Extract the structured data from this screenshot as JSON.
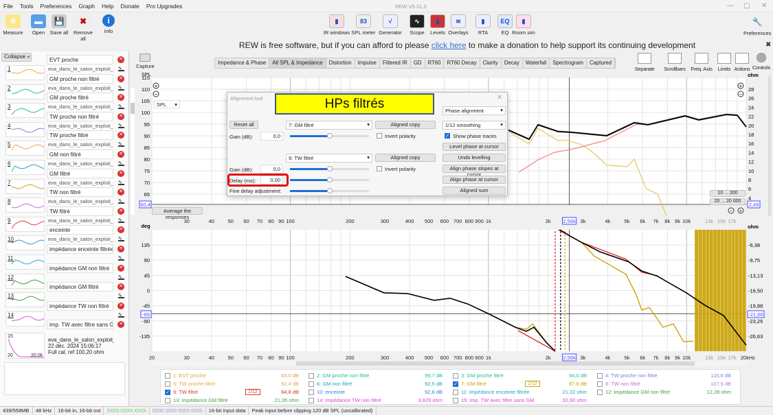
{
  "menu": [
    "File",
    "Tools",
    "Preferences",
    "Graph",
    "Help",
    "Donate",
    "Pro Upgrades"
  ],
  "window_title": "REW V5.31.3",
  "toolbar_left": [
    {
      "label": "Measure",
      "icon": "measure-icon"
    },
    {
      "label": "Open",
      "icon": "folder-icon"
    },
    {
      "label": "Save all",
      "icon": "save-icon"
    },
    {
      "label": "Remove all",
      "icon": "remove-icon"
    },
    {
      "label": "Info",
      "icon": "info-icon"
    }
  ],
  "toolbar_right": [
    {
      "label": "IR windows",
      "icon": "ir-windows-icon"
    },
    {
      "label": "SPL meter",
      "icon": "spl-meter-icon",
      "glyph": "83"
    },
    {
      "label": "Generator",
      "icon": "generator-icon"
    },
    {
      "label": "Scope",
      "icon": "scope-icon"
    },
    {
      "label": "Levels",
      "icon": "levels-icon"
    },
    {
      "label": "Overlays",
      "icon": "overlays-icon"
    },
    {
      "label": "RTA",
      "icon": "rta-icon"
    },
    {
      "label": "EQ",
      "icon": "eq-icon",
      "glyph": "EQ"
    },
    {
      "label": "Room sim",
      "icon": "room-sim-icon"
    }
  ],
  "preferences_label": "Preferences",
  "donate": {
    "before": "REW is free software, but if you can afford to please ",
    "link": "click here",
    "after": " to make a donation to help support its continuing development"
  },
  "collapse_label": "Collapse",
  "capture_label": "Capture",
  "tabs": [
    {
      "label": "Impedance & Phase"
    },
    {
      "label": "All SPL & Impedance",
      "active": true
    },
    {
      "label": "Distortion"
    },
    {
      "label": "Impulse"
    },
    {
      "label": "Filtered IR"
    },
    {
      "label": "GD"
    },
    {
      "label": "RT60"
    },
    {
      "label": "RT60 Decay"
    },
    {
      "label": "Clarity"
    },
    {
      "label": "Decay"
    },
    {
      "label": "Waterfall"
    },
    {
      "label": "Spectrogram"
    },
    {
      "label": "Captured"
    }
  ],
  "graph_tools": [
    "Separate",
    "Scrollbars",
    "Freq. Axis",
    "Limits",
    "Actions",
    "Controls"
  ],
  "measurements": [
    {
      "n": "1",
      "name": "EVT proche",
      "sub": "eva_dans_le_salon_exploit_ir_d",
      "color": "#e0b030"
    },
    {
      "n": "2",
      "name": "GM proche non filtré",
      "sub": "eva_dans_le_salon_exploit_ir_d",
      "color": "#20c090"
    },
    {
      "n": "3",
      "name": "GM proche filtré",
      "sub": "eva_dans_le_salon_exploit_ir_d",
      "color": "#20c090"
    },
    {
      "n": "4",
      "name": "TW proche non filtré",
      "sub": "eva_dans_le_salon_exploit_ir_d",
      "color": "#8080e0"
    },
    {
      "n": "5",
      "name": "TW proche filtré",
      "sub": "eva_dans_le_salon_exploit_ir_d",
      "color": "#f0a040"
    },
    {
      "n": "6",
      "name": "GM non filtré",
      "sub": "eva_dans_le_salon_exploit_ir_d",
      "color": "#20a0c0"
    },
    {
      "n": "7",
      "name": "GM filtré",
      "sub": "eva_dans_le_salon_exploit_ir_d",
      "color": "#d0a020"
    },
    {
      "n": "8",
      "name": "TW non filtré",
      "sub": "eva_dans_le_salon_exploit_ir_d",
      "color": "#c070e0"
    },
    {
      "n": "9",
      "name": "TW filtré",
      "sub": "eva_dans_le_salon_exploit_ir_d",
      "color": "#e04040"
    },
    {
      "n": "10",
      "name": "enceinte",
      "sub": "eva_dans_le_salon_exploit_ir_d",
      "color": "#3090e0"
    },
    {
      "n": "11",
      "name": "impédance enceinte filtrée",
      "sub": "",
      "color": "#20a0d0"
    },
    {
      "n": "12",
      "name": "impédance GM non filtré",
      "sub": "",
      "color": "#40a040"
    },
    {
      "n": "13",
      "name": "impédance GM filtré",
      "sub": "",
      "color": "#40a040"
    },
    {
      "n": "14",
      "name": "impédance TW non filtré",
      "sub": "",
      "color": "#e050e0"
    },
    {
      "n": "15",
      "name": "imp. TW avec filtre sans GM",
      "sub": "",
      "color": "#e050e0"
    }
  ],
  "selected_measurement": {
    "file": "eva_dans_le_salon_exploit_ir_d",
    "date": "22 déc. 2024 15:06:17",
    "cal": "Full cal, ref 100,20 ohm",
    "thumb_min": "20",
    "thumb_max": "20,0k"
  },
  "graph": {
    "spl_unit": "SPL",
    "spl_select": "SPL",
    "ohm_unit": "ohm",
    "deg_unit": "deg",
    "spl_ticks": [
      "115",
      "110",
      "105",
      "100",
      "95",
      "90",
      "85",
      "80",
      "75",
      "70",
      "65"
    ],
    "spl_cursor": "60,4",
    "ohm_ticks": [
      "28",
      "26",
      "24",
      "22",
      "20",
      "18",
      "16",
      "14",
      "12",
      "10",
      "8",
      "6",
      "4"
    ],
    "ohm_cursor": "2,49",
    "deg_ticks": [
      "135",
      "90",
      "45",
      "0",
      "-45",
      "-90",
      "-135"
    ],
    "deg_cursor": "-69",
    "phase_ohm_ticks": [
      "-6,38",
      "-9,75",
      "-13,13",
      "-16,50",
      "-19,88",
      "-23,25",
      "-26,63"
    ],
    "phase_ohm_cursor": "-21,66",
    "freq_ticks_top": [
      "30",
      "40",
      "50",
      "60",
      "70",
      "80",
      "90",
      "100",
      "200",
      "300",
      "400",
      "500",
      "600",
      "700",
      "800",
      "900",
      "1k",
      "2k",
      "3k",
      "4k",
      "5k",
      "6k",
      "7k",
      "8k",
      "9k",
      "10k",
      "13k",
      "15k",
      "17k"
    ],
    "freq_ticks_bottom": [
      "20",
      "30",
      "40",
      "50",
      "60",
      "70",
      "80",
      "90",
      "100",
      "200",
      "300",
      "400",
      "500",
      "600",
      "700",
      "800",
      "900",
      "1k",
      "2k",
      "3k",
      "4k",
      "5k",
      "6k",
      "7k",
      "8k",
      "9k",
      "10k",
      "13k",
      "15k",
      "17k",
      "20kHz"
    ],
    "freq_cursor": "2,56k",
    "range_btn_1": "10 ... 200",
    "range_btn_2": "20 ... 20 000",
    "average_btn": "Average the responses"
  },
  "chart_data": [
    {
      "type": "line",
      "scale_x": "log",
      "xlim": [
        20,
        20000
      ],
      "ylim": [
        60.4,
        115
      ],
      "ylabel": "SPL",
      "cursor": {
        "x": 2560,
        "y": 60.4
      },
      "series": [
        {
          "name": "sum",
          "color": "#000000",
          "x": [
            1262,
            1604,
            1779,
            2244,
            2589,
            3955,
            5446,
            6385,
            9822,
            11530,
            15850,
            18030,
            20000
          ],
          "y": [
            92.4,
            88.5,
            94.7,
            91.8,
            91.5,
            90.0,
            95.6,
            94.7,
            98.5,
            96.8,
            99.1,
            98.8,
            93.8
          ]
        },
        {
          "name": "7: GM filtré",
          "color": "#e8c560",
          "x": [
            1262,
            1604,
            1779,
            2244,
            2450,
            2966,
            3366,
            3955,
            5024,
            5446,
            6238,
            7147,
            7925
          ],
          "y": [
            91.8,
            86.5,
            93.2,
            87.9,
            88.2,
            86.2,
            82.9,
            77.4,
            76.8,
            80.0,
            67.4,
            65.0,
            55.6
          ]
        },
        {
          "name": "9: TW filtré",
          "color": "#f08080",
          "x": [
            1422,
            1779,
            2155,
            2589,
            3034,
            3864,
            5024,
            5624,
            6385
          ],
          "y": [
            74.4,
            79.7,
            82.9,
            84.1,
            85.6,
            87.9,
            92.9,
            95.0,
            94.7
          ]
        }
      ]
    },
    {
      "type": "line",
      "scale_x": "log",
      "xlim": [
        20,
        20000
      ],
      "ylim": [
        -180,
        180
      ],
      "ylabel": "deg",
      "cursor": {
        "x": 2560,
        "y": -69
      },
      "markers": [
        {
          "x": 2172,
          "color": "#e02020"
        },
        {
          "x": 2313,
          "color": "#000000"
        },
        {
          "x": 2431,
          "color": "#d0a000"
        }
      ],
      "series": [
        {
          "name": "7: GM filtré",
          "color": "#c9a000",
          "x": [
            190,
            297,
            390,
            532,
            640,
            787,
            1009,
            1368,
            1552,
            1672,
            1973,
            2172,
            null,
            2296,
            2608,
            2944,
            3420,
            4944,
            5572,
            5943,
            6486,
            7606,
            8574,
            9664,
            10810
          ],
          "y": [
            41.7,
            -7,
            -9,
            -29,
            -23,
            -40,
            -70,
            -109,
            -115,
            -99,
            -156,
            -180,
            null,
            180,
            160,
            143,
            102,
            48,
            -13,
            -58,
            -50,
            -109,
            -99,
            -152,
            -150
          ],
          "noise_band_hz": [
            11000,
            20000
          ]
        },
        {
          "name": "sum",
          "color": "#000000",
          "x": [
            190,
            297,
            390,
            532,
            640,
            787,
            1009,
            1368,
            1552,
            1696,
            1973,
            2172,
            null,
            2296,
            2608,
            2944,
            3648,
            5106,
            5943,
            7145,
            9982,
            12390,
            15350,
            20000
          ],
          "y": [
            41.7,
            -7,
            -9,
            -29,
            -23,
            -40,
            -70,
            -109,
            -121,
            -109,
            -156,
            -180,
            null,
            180,
            160,
            143,
            115,
            85,
            58,
            42,
            -7,
            -44,
            -74,
            -162
          ]
        },
        {
          "name": "9: TW filtré",
          "color": "#e02020",
          "x": [
            1413,
            2172,
            null,
            2250,
            2944,
            4944,
            5943,
            7145
          ],
          "y": [
            -119,
            -180,
            null,
            180,
            143,
            93,
            54,
            44
          ]
        }
      ]
    }
  ],
  "alignment_tool": {
    "title": "Alignment tool",
    "banner": "HPs filtrés",
    "reset": "Reset all",
    "sel1": "7: GM filtré",
    "sel2": "9: TW filtré",
    "aligned_copy": "Aligned copy",
    "gain_label": "Gain (dB):",
    "gain1": "0,0",
    "gain2": "0,0",
    "invert": "Invert polarity",
    "delay_label": "Delay (ms):",
    "delay": "0,00",
    "fine": "Fine delay adjustment:",
    "mode": "Phase alignment",
    "smoothing": "1/12 smoothing",
    "show_phase": "Show phase traces",
    "btn_level": "Level phase at cursor",
    "btn_undo": "Undo levelling",
    "btn_slopes": "Align phase slopes at cursor",
    "btn_align": "Align phase at cursor",
    "btn_sum": "Aligned sum",
    "slider_levels": [
      0.5,
      0.5,
      0.5,
      0.5
    ]
  },
  "legend": [
    {
      "label": "1: EVT proche",
      "value": "83,0 dB",
      "color": "#e0a040",
      "checked": false
    },
    {
      "label": "2: GM proche non filtré",
      "value": "99,7 dB",
      "color": "#20c090",
      "checked": false
    },
    {
      "label": "3: GM proche filtré",
      "value": "94,0 dB",
      "color": "#20c090",
      "checked": false
    },
    {
      "label": "4: TW proche non filtré",
      "value": "115,6 dB",
      "color": "#8080e0",
      "checked": false
    },
    {
      "label": "5: TW proche filtré",
      "value": "92,4 dB",
      "color": "#f0a040",
      "checked": false
    },
    {
      "label": "6: GM non filtré",
      "value": "92,5 dB",
      "color": "#20a0c0",
      "checked": false
    },
    {
      "label": "7: GM filtré",
      "value": "87,6 dB",
      "color": "#d0a000",
      "checked": true,
      "badge": "1/12"
    },
    {
      "label": "8: TW non filtré",
      "value": "107,5 dB",
      "color": "#c070e0",
      "checked": false
    },
    {
      "label": "9: TW filtré",
      "value": "84,8 dB",
      "color": "#e03030",
      "checked": true,
      "badge": "1/12"
    },
    {
      "label": "10: enceinte",
      "value": "92,6 dB",
      "color": "#3080e0",
      "checked": false
    },
    {
      "label": "11: impédance enceinte filtrée",
      "value": "21,32 ohm",
      "color": "#20a0d0",
      "checked": false
    },
    {
      "label": "12: impédance GM non filtré",
      "value": "12,28 ohm",
      "color": "#40a040",
      "checked": false
    },
    {
      "label": "13: impédance GM filtré",
      "value": "21,35 ohm",
      "color": "#40a040",
      "checked": false
    },
    {
      "label": "14: impédance TW non filtré",
      "value": "3,829 ohm",
      "color": "#e040e0",
      "checked": false
    },
    {
      "label": "15: imp. TW avec filtre sans GM",
      "value": "32,60 ohm",
      "color": "#e040e0",
      "checked": false
    }
  ],
  "status": {
    "memory": "439/558MB",
    "rate": "48 kHz",
    "bits": "16-bit in, 16-bit out",
    "in_meter": "XXXX XXXX XXXX",
    "out_meter": "0000 0000  0000 0000",
    "input_data": "16-bit input data",
    "peak": "Peak input before clipping 120 dB SPL (uncalibrated)"
  }
}
